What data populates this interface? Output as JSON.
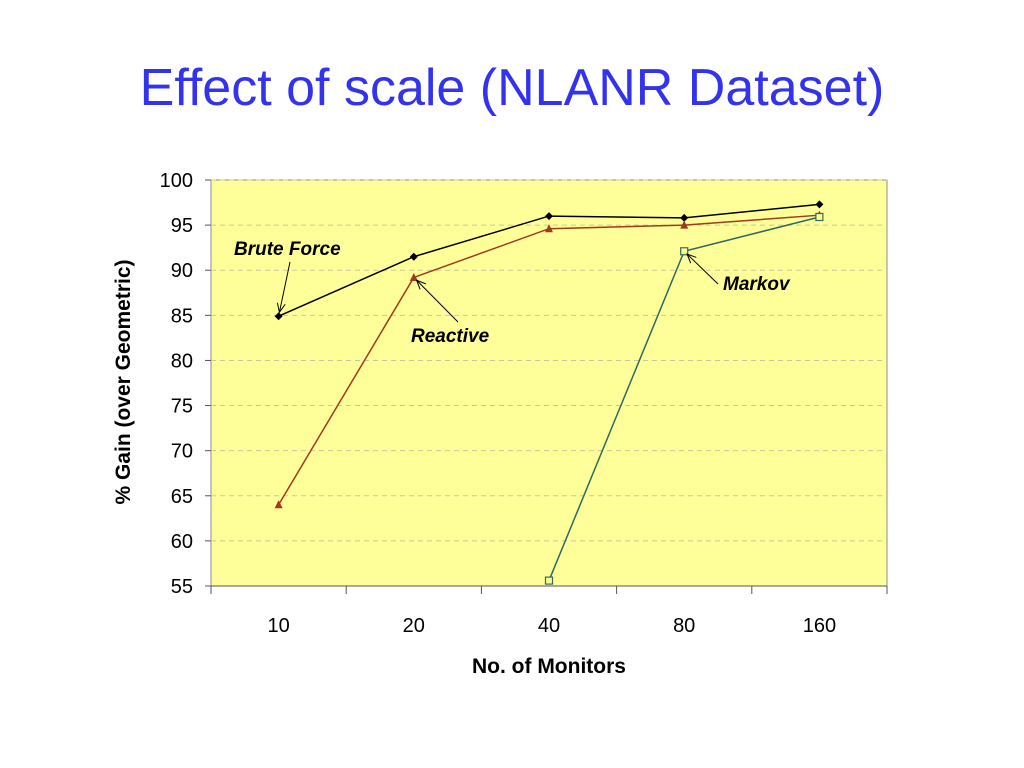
{
  "slide": {
    "title": "Effect of scale (NLANR Dataset)"
  },
  "colors": {
    "title": "#3333ee",
    "plot_background": "#ffff99",
    "gridline": "#c8c8a0",
    "brute_force": "#000000",
    "reactive": "#a0391e",
    "markov": "#2e6b5e"
  },
  "chart_data": {
    "type": "line",
    "title": "",
    "xlabel": "No. of Monitors",
    "ylabel": "% Gain (over Geometric)",
    "categories": [
      "10",
      "20",
      "40",
      "80",
      "160"
    ],
    "ylim": [
      55,
      100
    ],
    "yticks": [
      55,
      60,
      65,
      70,
      75,
      80,
      85,
      90,
      95,
      100
    ],
    "grid": "horizontal dashed",
    "legend": "none (series labeled by callout annotations)",
    "series": [
      {
        "name": "Brute Force",
        "marker": "diamond",
        "color": "#000000",
        "values": [
          84.9,
          91.5,
          96.0,
          95.8,
          97.3
        ]
      },
      {
        "name": "Reactive",
        "marker": "triangle",
        "color": "#a0391e",
        "values": [
          64.0,
          89.2,
          94.6,
          95.0,
          96.1
        ]
      },
      {
        "name": "Markov",
        "marker": "square",
        "color": "#2e6b5e",
        "values": [
          null,
          null,
          55.6,
          92.1,
          95.9
        ]
      }
    ],
    "annotations": [
      {
        "text": "Brute Force",
        "series": "Brute Force",
        "point_category": "10"
      },
      {
        "text": "Reactive",
        "series": "Reactive",
        "point_category": "20"
      },
      {
        "text": "Markov",
        "series": "Markov",
        "point_category": "80"
      }
    ]
  }
}
